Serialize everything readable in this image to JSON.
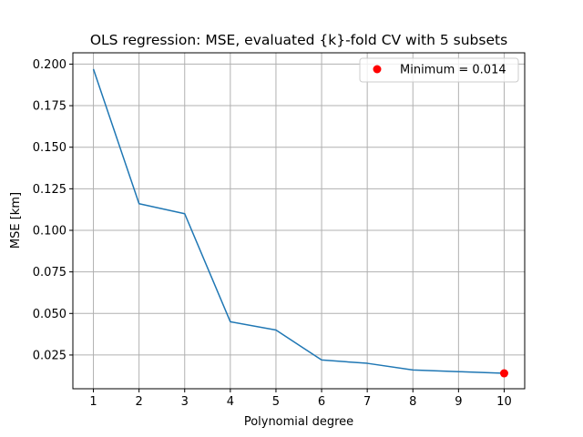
{
  "chart_data": {
    "type": "line",
    "title": "OLS regression: MSE, evaluated {k}-fold CV with 5 subsets",
    "xlabel": "Polynomial degree",
    "ylabel": "MSE [km]",
    "xlim": [
      0.55,
      10.45
    ],
    "ylim": [
      0.0047,
      0.2068
    ],
    "grid": true,
    "legend_position": "top-right",
    "x_ticks": [
      1,
      2,
      3,
      4,
      5,
      6,
      7,
      8,
      9,
      10
    ],
    "x_tick_labels": [
      "1",
      "2",
      "3",
      "4",
      "5",
      "6",
      "7",
      "8",
      "9",
      "10"
    ],
    "y_ticks": [
      0.025,
      0.05,
      0.075,
      0.1,
      0.125,
      0.15,
      0.175,
      0.2
    ],
    "y_tick_labels": [
      "0.025",
      "0.050",
      "0.075",
      "0.100",
      "0.125",
      "0.150",
      "0.175",
      "0.200"
    ],
    "series": [
      {
        "color": "#1f77b4",
        "x": [
          1,
          2,
          3,
          4,
          5,
          6,
          7,
          8,
          9,
          10
        ],
        "values": [
          0.197,
          0.116,
          0.11,
          0.045,
          0.04,
          0.022,
          0.02,
          0.016,
          0.015,
          0.014
        ]
      }
    ],
    "highlight": {
      "name": "Minimum = 0.014",
      "color": "#ff0000",
      "x": 10,
      "y": 0.014
    }
  }
}
